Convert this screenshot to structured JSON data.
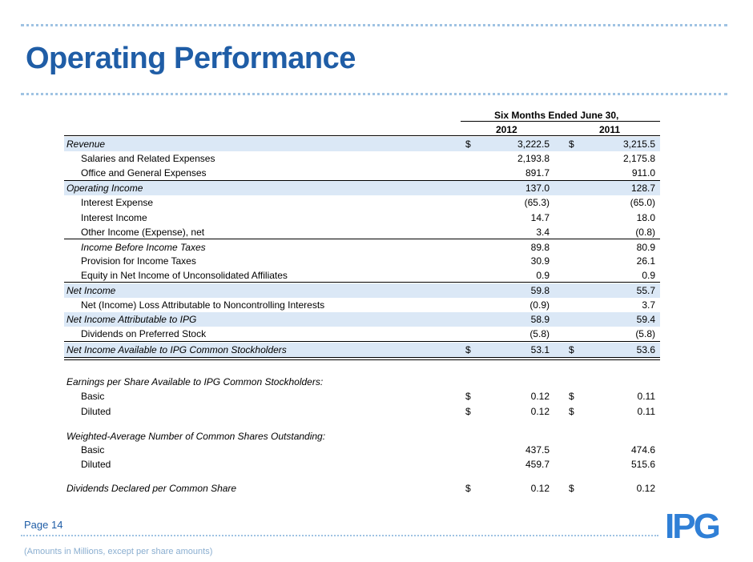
{
  "title": "Operating Performance",
  "table": {
    "period_header": "Six Months Ended June 30,",
    "col1": "2012",
    "col2": "2011",
    "rows": [
      {
        "label": "Revenue",
        "d1": "$",
        "v1": "3,222.5",
        "d2": "$",
        "v2": "3,215.5"
      },
      {
        "label": "Salaries and Related Expenses",
        "v1": "2,193.8",
        "v2": "2,175.8"
      },
      {
        "label": "Office and General Expenses",
        "v1": "891.7",
        "v2": "911.0"
      },
      {
        "label": "Operating Income",
        "v1": "137.0",
        "v2": "128.7"
      },
      {
        "label": "Interest Expense",
        "v1": "(65.3)",
        "v2": "(65.0)"
      },
      {
        "label": "Interest Income",
        "v1": "14.7",
        "v2": "18.0"
      },
      {
        "label": "Other Income (Expense), net",
        "v1": "3.4",
        "v2": "(0.8)"
      },
      {
        "label": "Income Before Income Taxes",
        "v1": "89.8",
        "v2": "80.9"
      },
      {
        "label": "Provision for Income Taxes",
        "v1": "30.9",
        "v2": "26.1"
      },
      {
        "label": "Equity in Net Income of Unconsolidated Affiliates",
        "v1": "0.9",
        "v2": "0.9"
      },
      {
        "label": "Net Income",
        "v1": "59.8",
        "v2": "55.7"
      },
      {
        "label": "Net (Income) Loss Attributable to Noncontrolling Interests",
        "v1": "(0.9)",
        "v2": "3.7"
      },
      {
        "label": "Net Income Attributable to IPG",
        "v1": "58.9",
        "v2": "59.4"
      },
      {
        "label": "Dividends on Preferred Stock",
        "v1": "(5.8)",
        "v2": "(5.8)"
      },
      {
        "label": "Net Income Available to IPG Common Stockholders",
        "d1": "$",
        "v1": "53.1",
        "d2": "$",
        "v2": "53.6"
      }
    ],
    "eps_header": "Earnings per Share Available to IPG Common Stockholders:",
    "eps_rows": [
      {
        "label": "Basic",
        "d1": "$",
        "v1": "0.12",
        "d2": "$",
        "v2": "0.11"
      },
      {
        "label": "Diluted",
        "d1": "$",
        "v1": "0.12",
        "d2": "$",
        "v2": "0.11"
      }
    ],
    "shares_header": "Weighted-Average Number of Common Shares Outstanding:",
    "shares_rows": [
      {
        "label": "Basic",
        "v1": "437.5",
        "v2": "474.6"
      },
      {
        "label": "Diluted",
        "v1": "459.7",
        "v2": "515.6"
      }
    ],
    "dividends_row": {
      "label": "Dividends Declared per Common Share",
      "d1": "$",
      "v1": "0.12",
      "d2": "$",
      "v2": "0.12"
    }
  },
  "footer": {
    "page": "Page 14",
    "note": "(Amounts in Millions, except per share amounts)",
    "logo_text": "IPG"
  },
  "colors": {
    "brand_blue": "#1f5da6",
    "band": "#dbe8f6",
    "dots": "#9fc3e3"
  }
}
